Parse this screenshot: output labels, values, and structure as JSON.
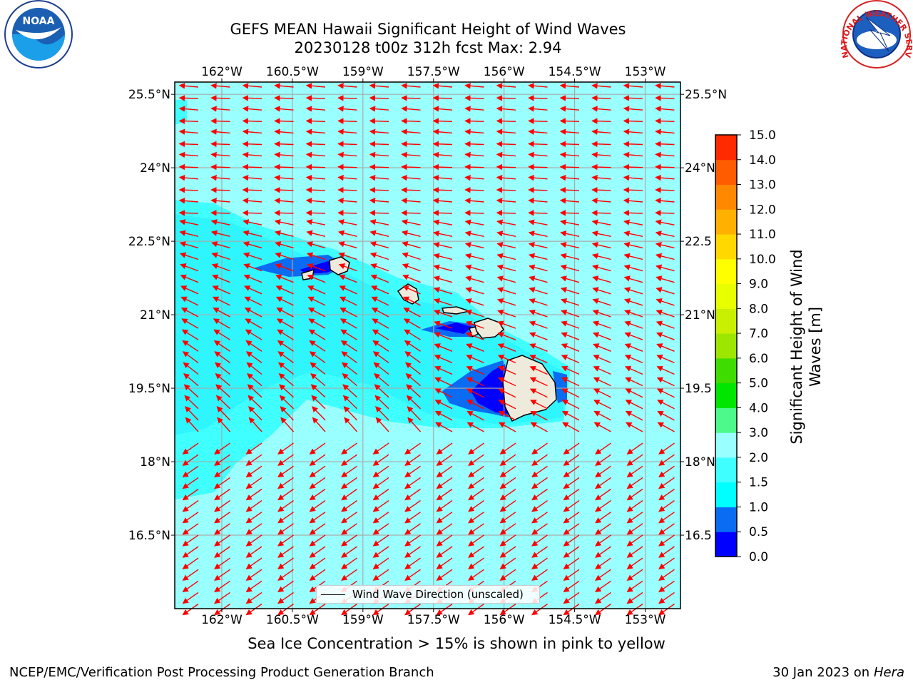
{
  "title": {
    "line1": "GEFS MEAN Hawaii Significant Height of Wind Waves",
    "line2": "20230128 t00z 312h fcst   Max: 2.94"
  },
  "map": {
    "lon_ticks": [
      "162°W",
      "160.5°W",
      "159°W",
      "157.5°W",
      "156°W",
      "154.5°W",
      "153°W"
    ],
    "lat_ticks": [
      "25.5°N",
      "24°N",
      "22.5°N",
      "21°N",
      "19.5°N",
      "18°N",
      "16.5°N"
    ],
    "lat_ticks_right": [
      "25.5°N",
      "24°N",
      "22.5",
      "21°N",
      "19.5",
      "18°N",
      "16.5"
    ],
    "lon_values": [
      -162,
      -160.5,
      -159,
      -157.5,
      -156,
      -154.5,
      -153
    ],
    "lat_values": [
      25.5,
      24,
      22.5,
      21,
      19.5,
      18,
      16.5
    ],
    "lon_range": [
      -163,
      -152.25
    ],
    "lat_range": [
      15.0,
      25.75
    ],
    "legend_label": "Wind Wave Direction (unscaled)",
    "arrow_color": "#ff0000",
    "land_color": "#efebdc",
    "islands": [
      "Niihau",
      "Kauai",
      "Oahu",
      "Molokai",
      "Lanai",
      "Maui",
      "Hawaii"
    ]
  },
  "colorbar": {
    "label_line1": "Significant Height of Wind",
    "label_line2": "Waves [m]",
    "ticks": [
      "0.0",
      "0.5",
      "1.0",
      "1.5",
      "2.0",
      "3.0",
      "4.0",
      "5.0",
      "6.0",
      "7.0",
      "8.0",
      "9.0",
      "10.0",
      "11.0",
      "12.0",
      "13.0",
      "14.0",
      "15.0"
    ],
    "colors": [
      "#0000ff",
      "#0a6cf2",
      "#00ffff",
      "#40ffff",
      "#99ffff",
      "#4cf98a",
      "#00e600",
      "#3fdc00",
      "#9de600",
      "#c8f000",
      "#e8ff00",
      "#ffff00",
      "#ffd800",
      "#ffb000",
      "#ff8800",
      "#ff5c00",
      "#ff2a00",
      "#ff0000"
    ]
  },
  "caption": "Sea Ice Concentration > 15% is shown in pink to yellow",
  "footer": {
    "left": "NCEP/EMC/Verification Post Processing Product Generation Branch",
    "right_prefix": "30 Jan 2023 on ",
    "right_host": "Hera"
  },
  "logos": {
    "noaa": "NOAA",
    "nws_text": "NATIONAL WEATHER SERVICE"
  }
}
